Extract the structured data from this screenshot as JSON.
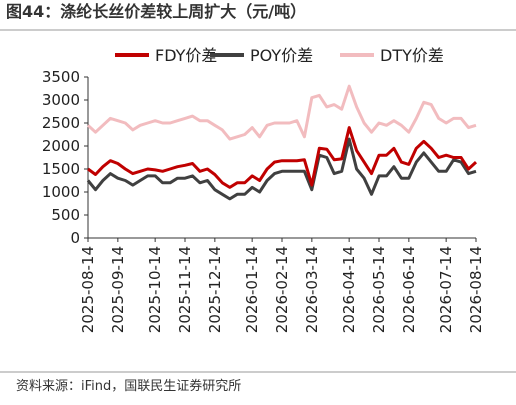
{
  "chart_data": {
    "type": "line",
    "title": "图44：涤纶长丝价差较上周扩大（元/吨）",
    "source": "资料来源：iFind，国联民生证券研究所",
    "categories": [
      "2025-08-14",
      null,
      null,
      null,
      "2025-09-14",
      null,
      null,
      null,
      null,
      "2025-10-14",
      null,
      null,
      null,
      "2025-11-14",
      null,
      null,
      null,
      "2025-12-14",
      null,
      null,
      null,
      null,
      "2026-01-14",
      null,
      null,
      null,
      "2026-02-14",
      null,
      null,
      null,
      "2026-03-14",
      null,
      null,
      null,
      null,
      "2026-04-14",
      null,
      null,
      null,
      "2026-05-14",
      null,
      null,
      null,
      "2026-06-14",
      null,
      null,
      null,
      null,
      "2026-07-14",
      null,
      null,
      null,
      "2026-08-14"
    ],
    "series": [
      {
        "name": "FDY价差",
        "color": "#c00000",
        "values": [
          1500,
          1380,
          1550,
          1680,
          1620,
          1500,
          1400,
          1450,
          1500,
          1480,
          1450,
          1500,
          1550,
          1580,
          1620,
          1450,
          1500,
          1380,
          1200,
          1100,
          1200,
          1200,
          1350,
          1250,
          1500,
          1650,
          1680,
          1680,
          1680,
          1700,
          1150,
          1950,
          1930,
          1700,
          1720,
          2400,
          1900,
          1650,
          1400,
          1800,
          1800,
          1950,
          1650,
          1600,
          1950,
          2100,
          1950,
          1750,
          1800,
          1750,
          1750,
          1500,
          1650
        ]
      },
      {
        "name": "POY价差",
        "color": "#404040",
        "values": [
          1250,
          1050,
          1250,
          1400,
          1300,
          1250,
          1150,
          1250,
          1350,
          1350,
          1200,
          1200,
          1300,
          1300,
          1350,
          1200,
          1250,
          1050,
          950,
          850,
          950,
          950,
          1100,
          1000,
          1250,
          1400,
          1450,
          1450,
          1450,
          1450,
          1050,
          1800,
          1750,
          1400,
          1450,
          2150,
          1500,
          1300,
          950,
          1350,
          1350,
          1550,
          1300,
          1300,
          1650,
          1850,
          1650,
          1450,
          1450,
          1700,
          1650,
          1400,
          1450
        ]
      },
      {
        "name": "DTY价差",
        "color": "#f2bcbf",
        "values": [
          2450,
          2300,
          2450,
          2600,
          2550,
          2500,
          2350,
          2450,
          2500,
          2550,
          2500,
          2500,
          2550,
          2600,
          2650,
          2550,
          2550,
          2450,
          2350,
          2150,
          2200,
          2250,
          2400,
          2200,
          2450,
          2500,
          2500,
          2500,
          2550,
          2200,
          3050,
          3100,
          2850,
          2900,
          2800,
          3300,
          2850,
          2500,
          2300,
          2500,
          2450,
          2550,
          2450,
          2300,
          2600,
          2950,
          2900,
          2600,
          2500,
          2600,
          2600,
          2400,
          2450
        ]
      }
    ],
    "ylim": [
      0,
      3500
    ],
    "yticks": [
      0,
      500,
      1000,
      1500,
      2000,
      2500,
      3000,
      3500
    ]
  }
}
